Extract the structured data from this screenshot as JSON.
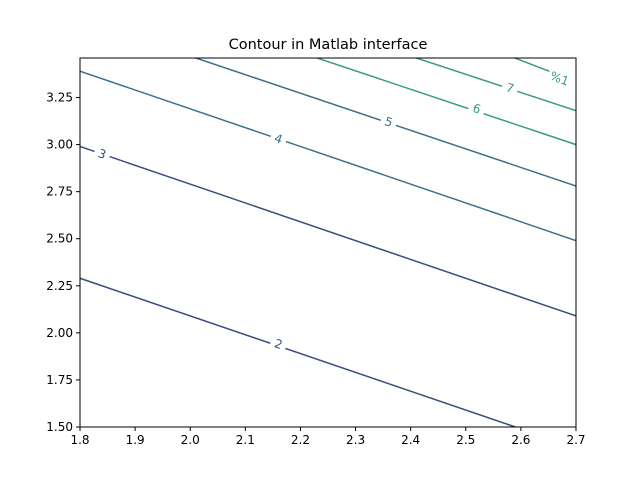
{
  "chart_data": {
    "type": "contour",
    "title": "Contour in Matlab interface",
    "xlabel": "",
    "ylabel": "",
    "xlim": [
      1.8,
      2.7
    ],
    "ylim": [
      1.5,
      3.46
    ],
    "xticks": [
      "1.8",
      "1.9",
      "2.0",
      "2.1",
      "2.2",
      "2.3",
      "2.4",
      "2.5",
      "2.6",
      "2.7"
    ],
    "yticks": [
      "1.50",
      "1.75",
      "2.00",
      "2.25",
      "2.50",
      "2.75",
      "3.00",
      "3.25"
    ],
    "grid": false,
    "colors": {
      "level_2": "#3b4f7e",
      "level_3": "#3b4f7e",
      "level_4": "#3e6f8d",
      "level_5": "#3e6f8d",
      "level_6": "#3a9b82",
      "level_7": "#3a9b82",
      "level_8": "#3a9b82"
    },
    "levels": [
      {
        "label": "2",
        "line": [
          [
            1.8,
            2.29
          ],
          [
            2.59,
            1.5
          ]
        ],
        "label_at": [
          2.16,
          1.94
        ]
      },
      {
        "label": "3",
        "line": [
          [
            1.8,
            2.99
          ],
          [
            2.7,
            2.09
          ]
        ],
        "label_at": [
          1.84,
          2.95
        ]
      },
      {
        "label": "4",
        "line": [
          [
            1.8,
            3.39
          ],
          [
            2.7,
            2.49
          ]
        ],
        "label_at": [
          2.16,
          3.03
        ]
      },
      {
        "label": "5",
        "line": [
          [
            2.0,
            3.47
          ],
          [
            2.7,
            2.78
          ]
        ],
        "label_at": [
          2.36,
          3.12
        ]
      },
      {
        "label": "6",
        "line": [
          [
            2.22,
            3.47
          ],
          [
            2.7,
            3.0
          ]
        ],
        "label_at": [
          2.52,
          3.19
        ]
      },
      {
        "label": "7",
        "line": [
          [
            2.4,
            3.47
          ],
          [
            2.7,
            3.18
          ]
        ],
        "label_at": [
          2.58,
          3.3
        ]
      },
      {
        "label": "%1",
        "line": [
          [
            2.58,
            3.47
          ],
          [
            2.66,
            3.38
          ]
        ],
        "label_at": [
          2.67,
          3.35
        ]
      }
    ]
  }
}
